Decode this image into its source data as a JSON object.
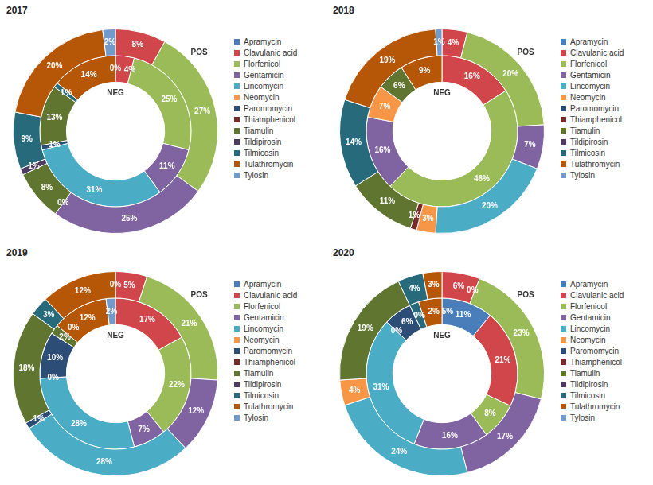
{
  "chart_data": [
    {
      "type": "doughnut",
      "title": "2017",
      "categories": [
        "Apramycin",
        "Clavulanic acid",
        "Florfenicol",
        "Gentamicin",
        "Lincomycin",
        "Neomycin",
        "Paromomycin",
        "Thiamphenicol",
        "Tiamulin",
        "Tildipirosin",
        "Tilmicosin",
        "Tulathromycin",
        "Tylosin"
      ],
      "colors": [
        "#4a7ebb",
        "#d0464a",
        "#9bbb59",
        "#8064a2",
        "#4bacc6",
        "#f79646",
        "#2c4d75",
        "#772c2a",
        "#5f7530",
        "#4d3b62",
        "#276a7c",
        "#b65708",
        "#729aca"
      ],
      "series": [
        {
          "name": "POS",
          "values": [
            null,
            8,
            27,
            25,
            0,
            null,
            null,
            null,
            8,
            1,
            9,
            20,
            2
          ],
          "value_labels": [
            null,
            "8%",
            "27%",
            "25%",
            "0%",
            null,
            null,
            null,
            "8%",
            "1%",
            "9%",
            "20%",
            "2%"
          ]
        },
        {
          "name": "NEG",
          "values": [
            0,
            4,
            25,
            11,
            31,
            null,
            1,
            null,
            13,
            null,
            1,
            14,
            null
          ],
          "value_labels": [
            "0%",
            "4%",
            "25%",
            "11%",
            "31%",
            null,
            "1%",
            null,
            "13%",
            null,
            "1%",
            "14%",
            null
          ]
        }
      ],
      "data_labels": true,
      "legend": "right"
    },
    {
      "type": "doughnut",
      "title": "2018",
      "categories": [
        "Apramycin",
        "Clavulanic acid",
        "Florfenicol",
        "Gentamicin",
        "Lincomycin",
        "Neomycin",
        "Paromomycin",
        "Thiamphenicol",
        "Tiamulin",
        "Tildipirosin",
        "Tilmicosin",
        "Tulathromycin",
        "Tylosin"
      ],
      "colors": [
        "#4a7ebb",
        "#d0464a",
        "#9bbb59",
        "#8064a2",
        "#4bacc6",
        "#f79646",
        "#2c4d75",
        "#772c2a",
        "#5f7530",
        "#4d3b62",
        "#276a7c",
        "#b65708",
        "#729aca"
      ],
      "series": [
        {
          "name": "POS",
          "values": [
            null,
            4,
            20,
            7,
            20,
            3,
            null,
            1,
            11,
            null,
            14,
            19,
            1
          ],
          "value_labels": [
            null,
            "4%",
            "20%",
            "7%",
            "20%",
            "3%",
            null,
            "1%",
            "11%",
            null,
            "14%",
            "19%",
            "1%"
          ]
        },
        {
          "name": "NEG",
          "values": [
            null,
            16,
            46,
            16,
            null,
            7,
            null,
            null,
            6,
            null,
            null,
            9,
            null
          ],
          "value_labels": [
            null,
            "16%",
            "46%",
            "16%",
            null,
            "7%",
            null,
            null,
            "6%",
            null,
            null,
            "9%",
            null
          ]
        }
      ],
      "data_labels": true,
      "legend": "right"
    },
    {
      "type": "doughnut",
      "title": "2019",
      "categories": [
        "Apramycin",
        "Clavulanic acid",
        "Florfenicol",
        "Gentamicin",
        "Lincomycin",
        "Neomycin",
        "Paromomycin",
        "Thiamphenicol",
        "Tiamulin",
        "Tildipirosin",
        "Tilmicosin",
        "Tulathromycin",
        "Tylosin"
      ],
      "colors": [
        "#4a7ebb",
        "#d0464a",
        "#9bbb59",
        "#8064a2",
        "#4bacc6",
        "#f79646",
        "#2c4d75",
        "#772c2a",
        "#5f7530",
        "#4d3b62",
        "#276a7c",
        "#b65708",
        "#729aca"
      ],
      "series": [
        {
          "name": "POS",
          "values": [
            null,
            5,
            21,
            12,
            28,
            null,
            1,
            null,
            18,
            null,
            3,
            12,
            0
          ],
          "value_labels": [
            null,
            "5%",
            "21%",
            "12%",
            "28%",
            null,
            "1%",
            null,
            "18%",
            null,
            "3%",
            "12%",
            "0%"
          ]
        },
        {
          "name": "NEG",
          "values": [
            null,
            17,
            22,
            7,
            28,
            0,
            10,
            null,
            2,
            null,
            0,
            12,
            2
          ],
          "value_labels": [
            null,
            "17%",
            "22%",
            "7%",
            "28%",
            "0%",
            "10%",
            null,
            "2%",
            null,
            "0%",
            "12%",
            "2%"
          ]
        }
      ],
      "data_labels": true,
      "legend": "right"
    },
    {
      "type": "doughnut",
      "title": "2020",
      "categories": [
        "Apramycin",
        "Clavulanic acid",
        "Florfenicol",
        "Gentamicin",
        "Lincomycin",
        "Neomycin",
        "Paromomycin",
        "Thiamphenicol",
        "Tiamulin",
        "Tildipirosin",
        "Tilmicosin",
        "Tulathromycin",
        "Tylosin"
      ],
      "colors": [
        "#4a7ebb",
        "#d0464a",
        "#9bbb59",
        "#8064a2",
        "#4bacc6",
        "#f79646",
        "#2c4d75",
        "#772c2a",
        "#5f7530",
        "#4d3b62",
        "#276a7c",
        "#b65708",
        "#729aca"
      ],
      "series": [
        {
          "name": "POS",
          "values": [
            null,
            6,
            23,
            17,
            24,
            4,
            null,
            null,
            19,
            null,
            4,
            3,
            0
          ],
          "value_labels": [
            null,
            "6%",
            "23%",
            "17%",
            "24%",
            "4%",
            null,
            null,
            "19%",
            null,
            "4%",
            "3%",
            "0%"
          ]
        },
        {
          "name": "NEG",
          "values": [
            11,
            21,
            8,
            16,
            31,
            0,
            6,
            null,
            0,
            null,
            2,
            5,
            null
          ],
          "value_labels": [
            "11%",
            "21%",
            "8%",
            "16%",
            "31%",
            "0%",
            "6%",
            null,
            "0%",
            null,
            "2%",
            "5%",
            null
          ]
        }
      ],
      "data_labels": true,
      "legend": "right"
    }
  ]
}
